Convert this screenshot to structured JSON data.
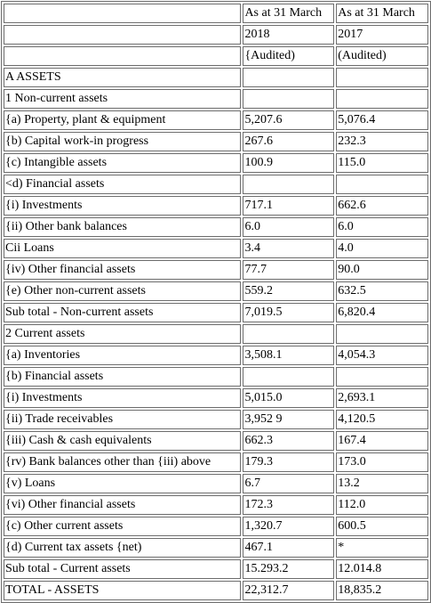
{
  "header_rows": [
    [
      "",
      "As at 31 March",
      "As at 31 March"
    ],
    [
      "",
      "2018",
      "2017"
    ],
    [
      "",
      "{Audited)",
      "(Audited)"
    ]
  ],
  "rows": [
    [
      "A ASSETS",
      "",
      ""
    ],
    [
      "1 Non-current assets",
      "",
      ""
    ],
    [
      "{a) Property, plant & equipment",
      "5,207.6",
      "5,076.4"
    ],
    [
      "{b) Capital work-in progress",
      "267.6",
      "232.3"
    ],
    [
      "{c) Intangible assets",
      "100.9",
      "115.0"
    ],
    [
      "<d) Financial assets",
      "",
      ""
    ],
    [
      "{i) Investments",
      "717.1",
      "662.6"
    ],
    [
      "{ii) Other bank balances",
      "6.0",
      "6.0"
    ],
    [
      "Cii Loans",
      "3.4",
      "4.0"
    ],
    [
      "{iv) Other financial assets",
      "77.7",
      "90.0"
    ],
    [
      "{e) Other non-current assets",
      "559.2",
      "632.5"
    ],
    [
      "Sub total - Non-current assets",
      "7,019.5",
      "6,820.4"
    ],
    [
      "2 Current assets",
      "",
      ""
    ],
    [
      "{a) Inventories",
      "3,508.1",
      "4,054.3"
    ],
    [
      "{b) Financial assets",
      "",
      ""
    ],
    [
      "{i) Investments",
      "5,015.0",
      "2,693.1"
    ],
    [
      "{ii) Trade receivables",
      "3,952 9",
      "4,120.5"
    ],
    [
      "{iii) Cash & cash equivalents",
      "662.3",
      "167.4"
    ],
    [
      "{rv) Bank balances other than {iii) above",
      "179.3",
      "173.0"
    ],
    [
      "{v) Loans",
      "6.7",
      "13.2"
    ],
    [
      "{vi) Other financial assets",
      "172.3",
      "112.0"
    ],
    [
      "{c) Other current assets",
      "1,320.7",
      "600.5"
    ],
    [
      "{d) Current tax assets {net)",
      "467.1",
      "*"
    ],
    [
      "Sub total - Current assets",
      "15.293.2",
      "12.014.8"
    ],
    [
      "TOTAL - ASSETS",
      "22,312.7",
      "18,835.2"
    ]
  ]
}
